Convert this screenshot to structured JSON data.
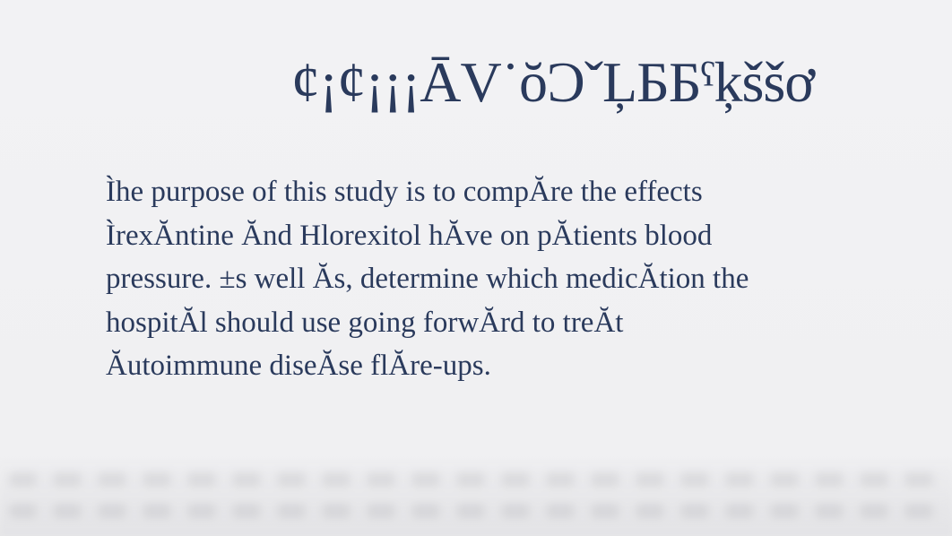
{
  "document": {
    "heading": "¢¡¢¡¡¡ĀV˙ŏƆˇĻББˤķššơ",
    "body_text": "Ìhe purpose of this study is to compĂre the effects ÌrexĂntine Ănd Hlorexitol hĂve on pĂtients blood pressure. ±s well Ăs, determine which medicĂtion the hospitĂl should use going forwĂrd to treĂt Ăutoimmune diseĂse flĂre-ups.",
    "text_color": "#2a3a5c",
    "background_color": "#f0f0f2",
    "heading_fontsize": 64,
    "body_fontsize": 33,
    "font_family": "serif"
  }
}
